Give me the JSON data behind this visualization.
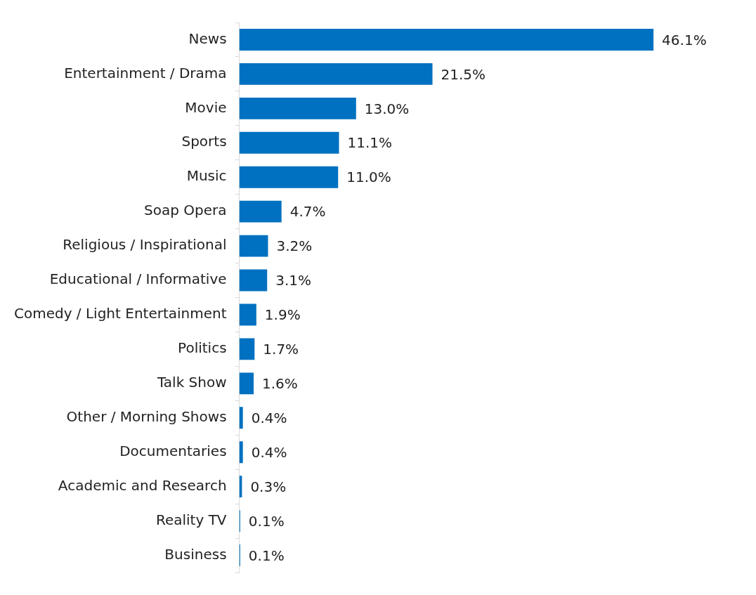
{
  "chart_data": {
    "type": "bar",
    "orientation": "horizontal",
    "color": "#0070c0",
    "categories": [
      "News",
      "Entertainment / Drama",
      "Movie",
      "Sports",
      "Music",
      "Soap Opera",
      "Religious / Inspirational",
      "Educational / Informative",
      "Comedy / Light Entertainment",
      "Politics",
      "Talk Show",
      "Other / Morning Shows",
      "Documentaries",
      "Academic and Research",
      "Reality TV",
      "Business"
    ],
    "values": [
      46.1,
      21.5,
      13.0,
      11.1,
      11.0,
      4.7,
      3.2,
      3.1,
      1.9,
      1.7,
      1.6,
      0.4,
      0.4,
      0.3,
      0.1,
      0.1
    ],
    "value_labels": [
      "46.1%",
      "21.5%",
      "13.0%",
      "11.1%",
      "11.0%",
      "4.7%",
      "3.2%",
      "3.1%",
      "1.9%",
      "1.7%",
      "1.6%",
      "0.4%",
      "0.4%",
      "0.3%",
      "0.1%",
      "0.1%"
    ]
  }
}
